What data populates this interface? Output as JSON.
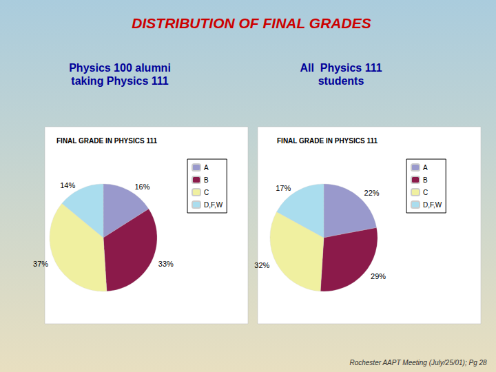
{
  "title": "DISTRIBUTION OF FINAL GRADES",
  "annotations": [
    "Rochester AAPT Meeting (July/25/01); Pg 28"
  ],
  "chart_data": [
    {
      "type": "pie",
      "title": "FINAL GRADE IN PHYSICS 111",
      "subtitle": "Physics 100 alumni\ntaking Physics 111",
      "categories": [
        "A",
        "B",
        "C",
        "D,F,W"
      ],
      "values": [
        16,
        33,
        37,
        14
      ],
      "value_labels": [
        "16%",
        "33%",
        "37%",
        "14%"
      ],
      "colors": [
        "#9999cc",
        "#8b1a4a",
        "#f0f0a0",
        "#aaddee"
      ],
      "data_labels": true,
      "legend": "right"
    },
    {
      "type": "pie",
      "title": "FINAL GRADE IN PHYSICS 111",
      "subtitle": "All  Physics 111\nstudents",
      "categories": [
        "A",
        "B",
        "C",
        "D,F,W"
      ],
      "values": [
        22,
        29,
        32,
        17
      ],
      "value_labels": [
        "22%",
        "29%",
        "32%",
        "17%"
      ],
      "colors": [
        "#9999cc",
        "#8b1a4a",
        "#f0f0a0",
        "#aaddee"
      ],
      "data_labels": true,
      "legend": "right"
    }
  ]
}
